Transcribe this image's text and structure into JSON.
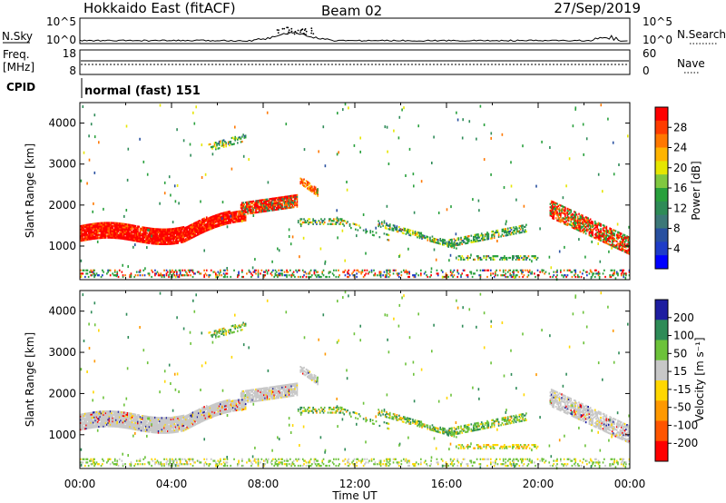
{
  "header": {
    "title": "Hokkaido East (fitACF)",
    "beam": "Beam 02",
    "date": "27/Sep/2019"
  },
  "top_panels": {
    "nsky_label": "N.Sky",
    "nsky_ticks": [
      "10^5",
      "10^0"
    ],
    "nsearch_label": "N.Search",
    "nsearch_ticks": [
      "10^5",
      "10^0"
    ],
    "freq_label_1": "Freq.",
    "freq_label_2": "[MHz]",
    "freq_ticks": [
      "18",
      "8"
    ],
    "nave_label": "Nave",
    "nave_ticks": [
      "60",
      "0"
    ],
    "cpid_label": "CPID",
    "cpid_value": "normal (fast) 151"
  },
  "chart_data": [
    {
      "type": "heatmap",
      "name": "power",
      "xlabel": "",
      "ylabel": "Slant Range [km]",
      "xlim_hours": [
        0,
        24
      ],
      "ylim": [
        180,
        4500
      ],
      "yticks": [
        "4000",
        "3000",
        "2000",
        "1000"
      ],
      "colorbar_label": "Power [dB]",
      "colorbar_ticks": [
        "28",
        "24",
        "20",
        "16",
        "12",
        "8",
        "4"
      ],
      "colorbar_colors": [
        "#ff0000",
        "#ff3c00",
        "#ff7800",
        "#ffb400",
        "#e6e600",
        "#80c840",
        "#28a03c",
        "#2e8b57",
        "#3c7878",
        "#2850a0",
        "#1e3cc8",
        "#0000ff"
      ]
    },
    {
      "type": "heatmap",
      "name": "velocity",
      "xlabel": "Time UT",
      "ylabel": "Slant Range [km]",
      "xlim_hours": [
        0,
        24
      ],
      "ylim": [
        180,
        4500
      ],
      "yticks": [
        "4000",
        "3000",
        "2000",
        "1000"
      ],
      "xticks": [
        "00:00",
        "04:00",
        "08:00",
        "12:00",
        "16:00",
        "20:00",
        "00:00"
      ],
      "colorbar_label": "Velocity [m s⁻¹]",
      "colorbar_ticks": [
        "200",
        "100",
        "50",
        "15",
        "-15",
        "-50",
        "-100",
        "-200"
      ],
      "colorbar_colors": [
        "#1e1ea0",
        "#2e8b57",
        "#6cc23a",
        "#c8c8c8",
        "#ffd700",
        "#ff9900",
        "#ff5500",
        "#ff0000"
      ]
    }
  ]
}
